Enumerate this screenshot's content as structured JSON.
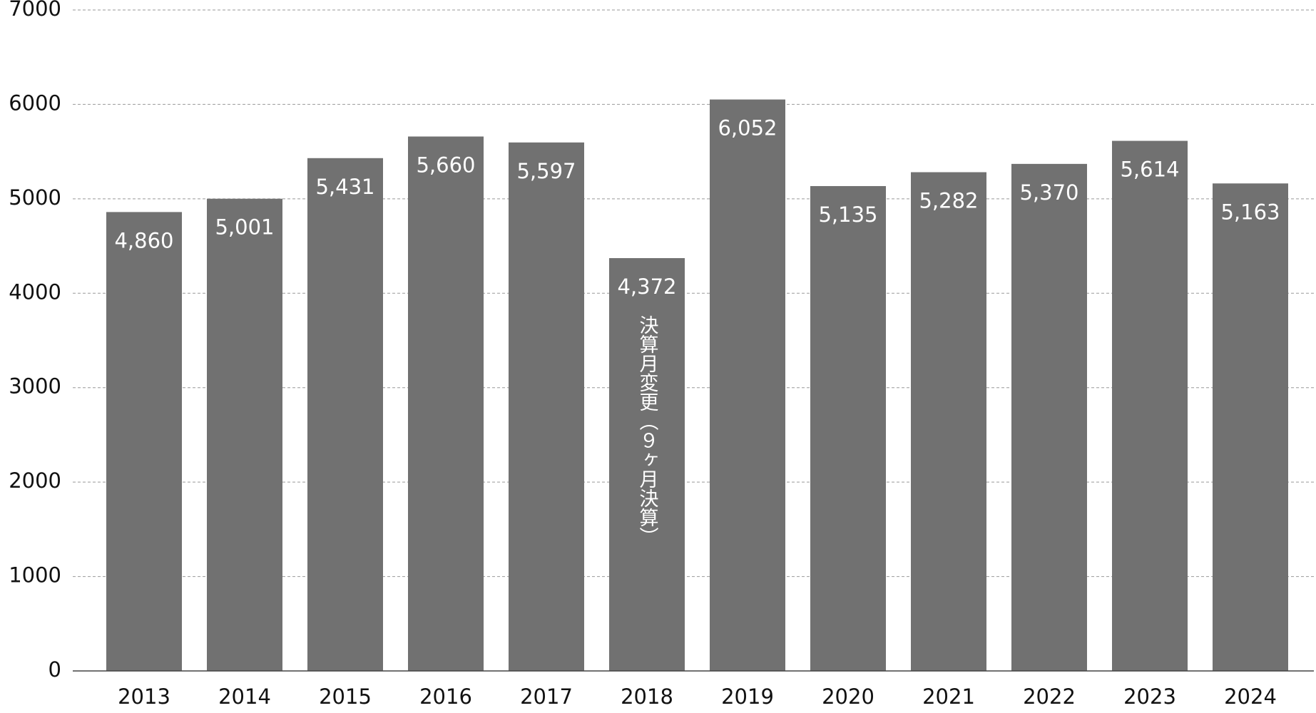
{
  "chart_data": {
    "type": "bar",
    "categories": [
      "2013",
      "2014",
      "2015",
      "2016",
      "2017",
      "2018",
      "2019",
      "2020",
      "2021",
      "2022",
      "2023",
      "2024"
    ],
    "values": [
      4860,
      5001,
      5431,
      5660,
      5597,
      4372,
      6052,
      5135,
      5282,
      5370,
      5614,
      5163
    ],
    "value_labels": [
      "4,860",
      "5,001",
      "5,431",
      "5,660",
      "5,597",
      "4,372",
      "6,052",
      "5,135",
      "5,282",
      "5,370",
      "5,614",
      "5,163"
    ],
    "color": "#717171",
    "ylim": [
      0,
      7000
    ],
    "yticks": [
      0,
      1000,
      2000,
      3000,
      4000,
      5000,
      6000,
      7000
    ],
    "grid": true,
    "annotation": {
      "category": "2018",
      "text": "決算月変更（９ヶ月決算）"
    }
  }
}
